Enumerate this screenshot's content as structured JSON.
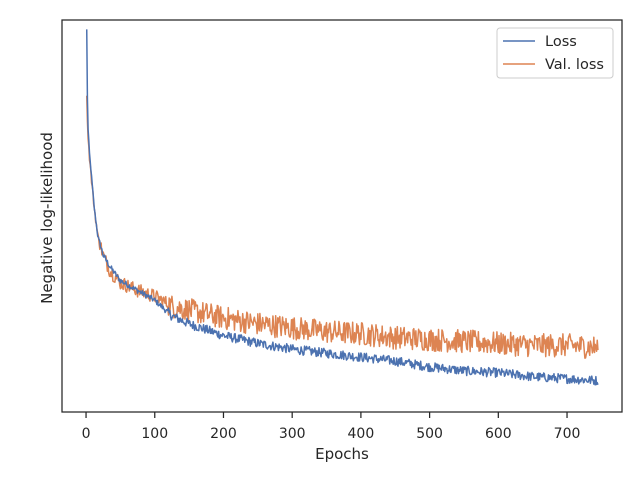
{
  "chart_data": {
    "type": "line",
    "title": "",
    "xlabel": "Epochs",
    "ylabel": "Negative log-likelihood",
    "xlim": [
      -35,
      780
    ],
    "ylim": [
      0,
      1
    ],
    "xticks": [
      0,
      100,
      200,
      300,
      400,
      500,
      600,
      700
    ],
    "yticks_shown": false,
    "grid": false,
    "legend_position": "top-right",
    "series": [
      {
        "name": "Loss",
        "color": "#4c72b0",
        "x": [
          1,
          2,
          3,
          5,
          8,
          12,
          17,
          25,
          35,
          50,
          75,
          100,
          125,
          150,
          175,
          200,
          250,
          300,
          350,
          400,
          450,
          500,
          550,
          600,
          650,
          700,
          745
        ],
        "y": [
          0.975,
          0.8,
          0.72,
          0.66,
          0.6,
          0.52,
          0.45,
          0.4,
          0.37,
          0.335,
          0.31,
          0.285,
          0.245,
          0.225,
          0.21,
          0.195,
          0.175,
          0.16,
          0.15,
          0.14,
          0.13,
          0.115,
          0.105,
          0.1,
          0.09,
          0.085,
          0.08
        ]
      },
      {
        "name": "Val. loss",
        "color": "#dd8452",
        "x": [
          1,
          2,
          3,
          5,
          8,
          12,
          17,
          25,
          35,
          50,
          75,
          100,
          125,
          150,
          175,
          200,
          250,
          300,
          350,
          400,
          450,
          500,
          550,
          600,
          650,
          700,
          745
        ],
        "y": [
          0.8,
          0.75,
          0.7,
          0.65,
          0.59,
          0.52,
          0.45,
          0.4,
          0.36,
          0.33,
          0.31,
          0.295,
          0.27,
          0.26,
          0.25,
          0.24,
          0.225,
          0.215,
          0.205,
          0.2,
          0.19,
          0.185,
          0.18,
          0.175,
          0.17,
          0.17,
          0.165
        ]
      }
    ]
  }
}
